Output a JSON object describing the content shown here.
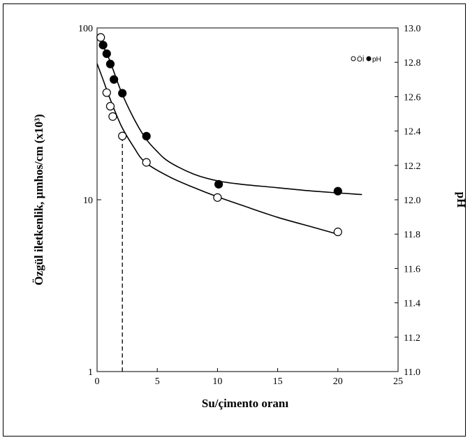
{
  "chart_data": {
    "type": "scatter",
    "xlabel": "Su/çimento oranı",
    "ylabel_left": "Özgül iletkenlik,  µmhos/cm (x10³)",
    "ylabel_right": "pH",
    "xlim": [
      0,
      25
    ],
    "ylim_left": [
      1,
      100
    ],
    "ylim_right": [
      11.0,
      13.0
    ],
    "yscale_left": "log",
    "x_ticks": [
      "0",
      "5",
      "10",
      "15",
      "20",
      "25"
    ],
    "y_left_ticks": [
      "1",
      "10",
      "100"
    ],
    "y_right_ticks": [
      "11.0",
      "11.2",
      "11.4",
      "11.6",
      "11.8",
      "12.0",
      "12.2",
      "12.4",
      "12.6",
      "12.8",
      "13.0"
    ],
    "legend_position": "top-right",
    "legend": [
      {
        "name": "Öİ",
        "marker": "open-circle"
      },
      {
        "name": "pH",
        "marker": "filled-circle"
      }
    ],
    "series": [
      {
        "name": "Öİ",
        "axis": "left",
        "marker": "open-circle",
        "x": [
          0.3,
          0.8,
          1.1,
          1.3,
          2.1,
          4.1,
          10.0,
          20.0
        ],
        "y": [
          88,
          42,
          35,
          30.5,
          23.5,
          16.5,
          10.3,
          6.5
        ]
      },
      {
        "name": "pH",
        "axis": "right",
        "marker": "filled-circle",
        "x": [
          0.5,
          0.8,
          1.1,
          1.4,
          2.1,
          4.1,
          10.1,
          20.0
        ],
        "y": [
          12.9,
          12.85,
          12.79,
          12.7,
          12.62,
          12.37,
          12.09,
          12.05
        ]
      }
    ],
    "fit_curves": [
      {
        "series": "Öİ",
        "axis": "left",
        "x": [
          0,
          0.5,
          1,
          2,
          3,
          4,
          6,
          8,
          10,
          12,
          15,
          18,
          20
        ],
        "y": [
          62,
          50,
          40,
          27,
          20.5,
          16.5,
          13.6,
          11.8,
          10.4,
          9.3,
          7.9,
          6.9,
          6.3
        ]
      },
      {
        "series": "pH",
        "axis": "right",
        "x": [
          0.3,
          1,
          2,
          3,
          4,
          5,
          6,
          8,
          10,
          12,
          15,
          18,
          22
        ],
        "y": [
          12.92,
          12.82,
          12.63,
          12.48,
          12.36,
          12.28,
          12.22,
          12.15,
          12.11,
          12.09,
          12.07,
          12.05,
          12.03
        ]
      }
    ],
    "reference_line": {
      "x": 2.1,
      "style": "dashed",
      "y_top": 23.5
    }
  }
}
